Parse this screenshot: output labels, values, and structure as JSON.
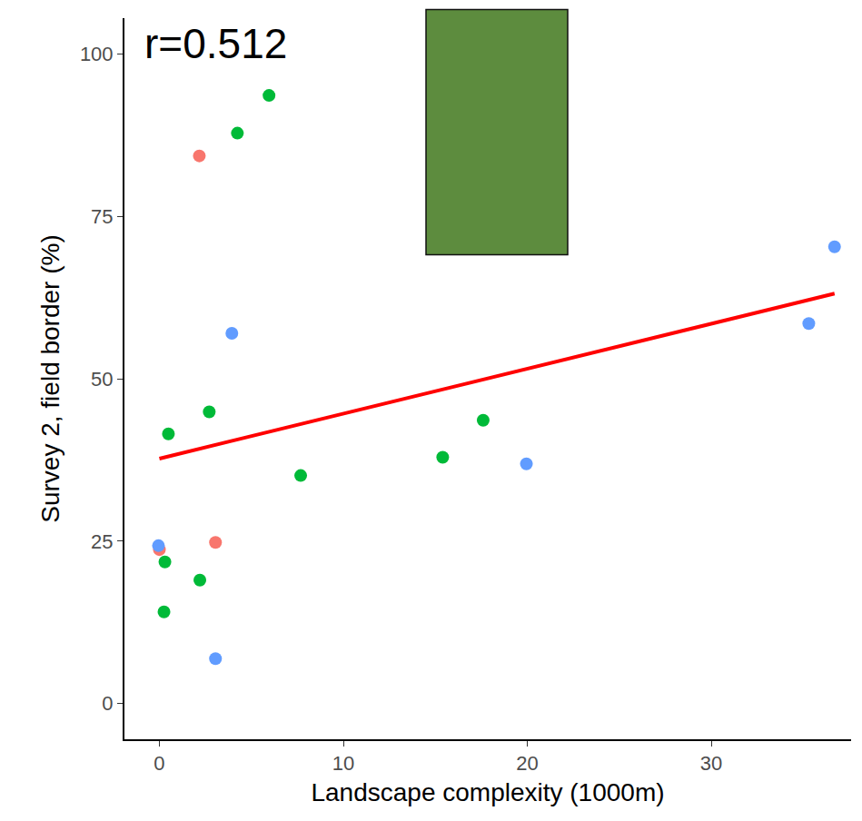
{
  "chart_data": {
    "type": "scatter",
    "x_label": "Landscape complexity (1000m)",
    "y_label": "Survey 2, field border (%)",
    "annotations": [
      {
        "text": "r=0.512"
      }
    ],
    "grid": false,
    "xlim": [
      -1.9,
      37.6
    ],
    "ylim": [
      -5.5,
      105.5
    ],
    "xticks": [
      0,
      10,
      20,
      30
    ],
    "yticks": [
      0,
      25,
      50,
      75,
      100
    ],
    "series": [
      {
        "color": "#f8766d",
        "marker": "circle",
        "x": [
          2.17,
          0.0,
          3.05
        ],
        "values": [
          84.3,
          23.7,
          24.8
        ]
      },
      {
        "color": "#00ba38",
        "marker": "circle",
        "x": [
          5.96,
          4.24,
          2.71,
          0.49,
          7.68,
          15.4,
          17.6,
          0.3,
          2.2,
          0.25
        ],
        "values": [
          93.6,
          87.8,
          44.9,
          41.5,
          35.1,
          37.9,
          43.6,
          21.8,
          19.0,
          14.1
        ]
      },
      {
        "color": "#619cff",
        "marker": "circle",
        "x": [
          36.7,
          35.3,
          3.94,
          19.95,
          -0.05,
          3.05
        ],
        "values": [
          70.3,
          58.5,
          57.0,
          36.9,
          24.3,
          6.9
        ]
      },
      {
        "type": "line",
        "color": "#ff0000",
        "line_style": "solid",
        "x": [
          0,
          36.7
        ],
        "values": [
          37.7,
          63.1
        ]
      }
    ]
  }
}
